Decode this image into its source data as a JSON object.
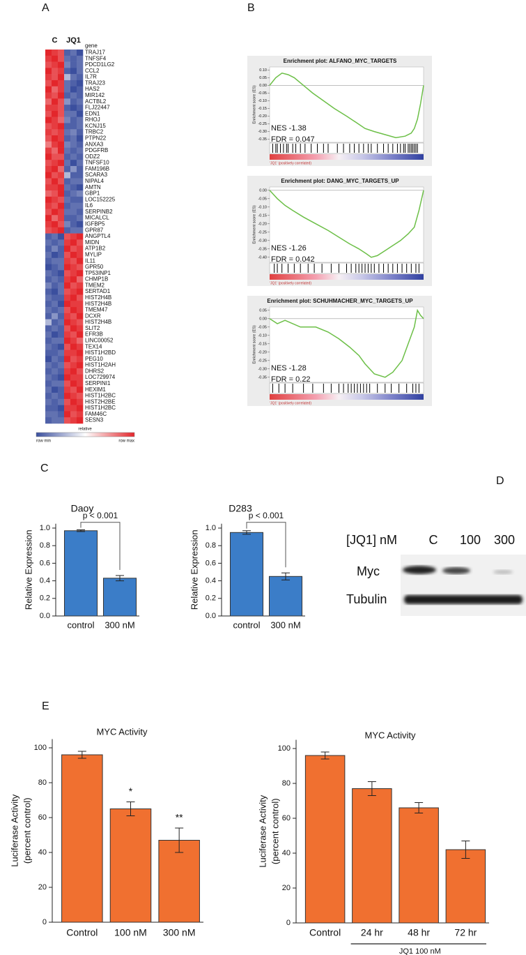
{
  "panel_labels": [
    "A",
    "B",
    "C",
    "D",
    "E"
  ],
  "chart_data": [
    {
      "type": "heatmap",
      "columns": [
        "C",
        "JQ1"
      ],
      "gene_header": "gene",
      "categories": [
        "TRAJ17",
        "TNFSF4",
        "PDCD1LG2",
        "CCL2",
        "IL7R",
        "TRAJ23",
        "HAS2",
        "MIR142",
        "ACTBL2",
        "FLJ22447",
        "EDN1",
        "RHOJ",
        "KCNJ15",
        "TRBC2",
        "PTPN22",
        "ANXA3",
        "PDGFRB",
        "ODZ2",
        "TNFSF10",
        "FAM196B",
        "SCARA3",
        "NIPAL4",
        "AMTN",
        "GBP1",
        "LOC152225",
        "IL6",
        "SERPINB2",
        "MICALCL",
        "IGFBP5",
        "GPR87",
        "ANGPTL4",
        "MIDN",
        "ATP1B2",
        "MYLIP",
        "IL11",
        "GPR50",
        "TP53INP1",
        "CHMP1B",
        "TMEM2",
        "SERTAD1",
        "HIST2H4B",
        "HIST2H4B",
        "TMEM47",
        "DCXR",
        "HIST2H4B",
        "SLIT2",
        "EFR3B",
        "LINC00052",
        "TEX14",
        "HIST1H2BD",
        "PEG10",
        "HIST1H2AH",
        "DHRS2",
        "LOC729974",
        "SERPINI1",
        "HEXIM1",
        "HIST1H2BC",
        "HIST2H2BE",
        "HIST1H2BC",
        "FAM46C",
        "SESN3"
      ],
      "values": [
        [
          1,
          0.95,
          0.9,
          0.05,
          0.1,
          0
        ],
        [
          0.95,
          1,
          0.9,
          0.1,
          0.05,
          0.1
        ],
        [
          0.9,
          0.95,
          1,
          0.15,
          0.05,
          0.1
        ],
        [
          1,
          0.9,
          0.95,
          0.05,
          0,
          0.1
        ],
        [
          0.95,
          0.9,
          1,
          0.3,
          0.1,
          0.05
        ],
        [
          0.9,
          1,
          0.95,
          0.1,
          0.05,
          0
        ],
        [
          1,
          0.85,
          0.95,
          0.1,
          0,
          0.05
        ],
        [
          0.95,
          0.9,
          1,
          0.05,
          0.1,
          0.05
        ],
        [
          0.85,
          1,
          0.9,
          0.2,
          0.05,
          0.1
        ],
        [
          0.95,
          0.95,
          0.9,
          0.05,
          0,
          0.05
        ],
        [
          0.9,
          1,
          0.9,
          0.1,
          0.1,
          0
        ],
        [
          1,
          0.95,
          0.85,
          0.15,
          0.05,
          0.1
        ],
        [
          0.9,
          0.95,
          1,
          0.05,
          0.05,
          0.1
        ],
        [
          0.95,
          0.9,
          0.95,
          0.1,
          0.15,
          0.05
        ],
        [
          0.9,
          1,
          0.95,
          0.05,
          0.1,
          0
        ],
        [
          0.8,
          0.95,
          1,
          0.15,
          0.1,
          0.05
        ],
        [
          0.95,
          0.85,
          1,
          0.1,
          0.05,
          0.1
        ],
        [
          1,
          0.9,
          0.9,
          0.05,
          0.1,
          0.05
        ],
        [
          0.9,
          0.95,
          1,
          0.1,
          0,
          0.1
        ],
        [
          0.95,
          1,
          0.85,
          0.05,
          0.2,
          0.05
        ],
        [
          1,
          0.9,
          0.95,
          0.3,
          0.05,
          0.05
        ],
        [
          0.9,
          1,
          0.9,
          0.05,
          0.1,
          0.1
        ],
        [
          0.95,
          0.95,
          1,
          0.1,
          0.05,
          0
        ],
        [
          0.85,
          0.9,
          1,
          0.05,
          0.1,
          0.15
        ],
        [
          1,
          0.95,
          0.9,
          0.1,
          0.05,
          0.05
        ],
        [
          0.95,
          0.9,
          1,
          0.05,
          0.1,
          0.1
        ],
        [
          0.9,
          1,
          0.95,
          0.1,
          0.1,
          0.05
        ],
        [
          1,
          0.85,
          0.95,
          0.05,
          0.05,
          0.1
        ],
        [
          0.95,
          1,
          0.9,
          0.15,
          0.05,
          0
        ],
        [
          0.9,
          0.95,
          1,
          0.05,
          0.1,
          0.1
        ],
        [
          0.05,
          0.1,
          0,
          0.9,
          0.95,
          1
        ],
        [
          0.1,
          0.05,
          0.1,
          0.95,
          1,
          0.9
        ],
        [
          0.05,
          0.15,
          0.05,
          1,
          0.9,
          0.95
        ],
        [
          0.1,
          0,
          0.05,
          0.9,
          1,
          0.95
        ],
        [
          0.05,
          0.1,
          0.1,
          0.95,
          0.9,
          1
        ],
        [
          0,
          0.05,
          0.1,
          1,
          0.95,
          0.9
        ],
        [
          0.1,
          0.05,
          0,
          0.9,
          0.95,
          1
        ],
        [
          0.05,
          0.1,
          0.05,
          0.95,
          1,
          0.85
        ],
        [
          0.15,
          0.05,
          0.1,
          1,
          0.9,
          0.95
        ],
        [
          0.05,
          0,
          0.1,
          0.9,
          0.95,
          1
        ],
        [
          0.1,
          0.05,
          0.05,
          0.95,
          1,
          0.9
        ],
        [
          0.05,
          0.1,
          0,
          1,
          0.95,
          0.95
        ],
        [
          0.1,
          0.05,
          0.1,
          0.9,
          1,
          0.95
        ],
        [
          0.05,
          0.2,
          0.05,
          0.95,
          0.9,
          1
        ],
        [
          0.3,
          0.05,
          0.1,
          1,
          0.95,
          0.9
        ],
        [
          0.05,
          0.1,
          0.05,
          0.9,
          1,
          0.95
        ],
        [
          0.1,
          0,
          0.05,
          0.95,
          0.9,
          1
        ],
        [
          0.05,
          0.1,
          0.1,
          1,
          0.95,
          0.85
        ],
        [
          0.1,
          0.05,
          0,
          0.9,
          1,
          0.95
        ],
        [
          0.05,
          0.05,
          0.1,
          0.95,
          0.95,
          1
        ],
        [
          0,
          0.1,
          0.05,
          1,
          0.9,
          0.95
        ],
        [
          0.1,
          0.05,
          0.1,
          0.9,
          0.95,
          1
        ],
        [
          0.05,
          0.1,
          0.05,
          0.95,
          1,
          0.9
        ],
        [
          0.1,
          0.05,
          0,
          1,
          0.95,
          0.95
        ],
        [
          0.05,
          0.1,
          0.1,
          0.9,
          1,
          0.95
        ],
        [
          0.1,
          0,
          0.05,
          0.95,
          0.9,
          1
        ],
        [
          0.05,
          0.1,
          0.05,
          1,
          0.95,
          0.9
        ],
        [
          0.1,
          0.05,
          0.1,
          0.9,
          1,
          0.95
        ],
        [
          0.05,
          0.05,
          0,
          0.95,
          0.95,
          1
        ],
        [
          0.1,
          0.1,
          0.05,
          1,
          0.9,
          0.95
        ],
        [
          0.05,
          0.1,
          0.1,
          0.9,
          0.95,
          1
        ]
      ],
      "colors": [
        "#3b4f9e",
        "#ffffff",
        "#e3262b"
      ],
      "legend": {
        "title": "relative",
        "min_label": "row min",
        "max_label": "row max"
      }
    },
    {
      "type": "gsea",
      "title": "Enrichment plot: ALFANO_MYC_TARGETS",
      "ylabel": "Enrichment score (ES)",
      "color": "#6cbf47",
      "x": [
        0,
        4,
        8,
        12,
        16,
        22,
        28,
        35,
        42,
        50,
        56,
        62,
        68,
        75,
        82,
        88,
        92,
        94,
        96,
        98,
        100
      ],
      "values": [
        0,
        0.05,
        0.08,
        0.07,
        0.05,
        0,
        -0.05,
        -0.1,
        -0.15,
        -0.2,
        -0.24,
        -0.28,
        -0.3,
        -0.32,
        -0.34,
        -0.33,
        -0.31,
        -0.28,
        -0.22,
        -0.12,
        0
      ],
      "xlim": [
        0,
        100
      ],
      "ylim": [
        -0.37,
        0.12
      ],
      "yticks": [
        {
          "value": 0.1,
          "label": "0.10"
        },
        0.05,
        {
          "value": 0,
          "label": "0.00"
        },
        -0.05,
        {
          "value": -0.1,
          "label": "-0.10"
        },
        -0.15,
        {
          "value": -0.2,
          "label": "-0.20"
        },
        -0.25,
        {
          "value": -0.3,
          "label": "-0.30"
        },
        -0.35
      ],
      "hits": [
        2,
        4,
        5,
        7,
        9,
        11,
        12,
        15,
        17,
        20,
        23,
        27,
        31,
        35,
        38,
        44,
        48,
        52,
        55,
        58,
        61,
        64,
        66,
        70,
        74,
        77,
        80,
        83,
        85,
        87,
        88,
        90,
        91,
        92,
        93,
        94,
        95,
        96
      ],
      "annotations": [
        "NES -1.38",
        "FDR = 0.047"
      ],
      "caption": "'JQ1' (positively correlated)"
    },
    {
      "type": "gsea",
      "title": "Enrichment plot: DANG_MYC_TARGETS_UP",
      "ylabel": "Enrichment score (ES)",
      "color": "#6cbf47",
      "x": [
        0,
        5,
        10,
        15,
        22,
        30,
        38,
        45,
        52,
        58,
        63,
        66,
        70,
        75,
        80,
        85,
        90,
        94,
        97,
        100
      ],
      "values": [
        0,
        -0.05,
        -0.09,
        -0.12,
        -0.16,
        -0.2,
        -0.24,
        -0.28,
        -0.32,
        -0.35,
        -0.38,
        -0.4,
        -0.39,
        -0.36,
        -0.33,
        -0.3,
        -0.26,
        -0.22,
        -0.12,
        0
      ],
      "xlim": [
        0,
        100
      ],
      "ylim": [
        -0.43,
        0.02
      ],
      "yticks": [
        {
          "value": 0,
          "label": "0.00"
        },
        -0.05,
        {
          "value": -0.1,
          "label": "-0.10"
        },
        -0.15,
        {
          "value": -0.2,
          "label": "-0.20"
        },
        -0.25,
        {
          "value": -0.3,
          "label": "-0.30"
        },
        -0.35,
        {
          "value": -0.4,
          "label": "-0.40"
        }
      ],
      "hits": [
        3,
        5,
        8,
        12,
        16,
        20,
        25,
        29,
        34,
        40,
        45,
        50,
        53,
        56,
        58,
        60,
        62,
        64,
        66,
        68,
        71,
        74,
        77,
        80,
        83,
        86,
        89,
        92,
        95,
        97
      ],
      "annotations": [
        "NES -1.26",
        "FDR = 0.042"
      ],
      "caption": "'JQ1' (positively correlated)"
    },
    {
      "type": "gsea",
      "title": "Enrichment plot: SCHUHMACHER_MYC_TARGETS_UP",
      "ylabel": "Enrichment score (ES)",
      "color": "#6cbf47",
      "x": [
        0,
        5,
        10,
        20,
        30,
        38,
        45,
        52,
        58,
        62,
        68,
        75,
        80,
        86,
        90,
        94,
        96,
        98,
        100
      ],
      "values": [
        0,
        -0.03,
        -0.01,
        -0.05,
        -0.05,
        -0.08,
        -0.12,
        -0.17,
        -0.22,
        -0.27,
        -0.33,
        -0.35,
        -0.32,
        -0.25,
        -0.15,
        -0.05,
        0.05,
        0.02,
        0
      ],
      "xlim": [
        0,
        100
      ],
      "ylim": [
        -0.38,
        0.07
      ],
      "yticks": [
        0.05,
        {
          "value": 0,
          "label": "0.00"
        },
        -0.05,
        {
          "value": -0.1,
          "label": "-0.10"
        },
        -0.15,
        {
          "value": -0.2,
          "label": "-0.20"
        },
        -0.25,
        {
          "value": -0.3,
          "label": "-0.30"
        },
        -0.35
      ],
      "hits": [
        2,
        6,
        10,
        15,
        22,
        28,
        35,
        40,
        45,
        48,
        51,
        53,
        55,
        57,
        59,
        61,
        63,
        65,
        70,
        75,
        79,
        84,
        89,
        93,
        95,
        97
      ],
      "annotations": [
        "NES -1.28",
        "FDR = 0.22"
      ],
      "caption": "'JQ1' (positively correlated)"
    },
    {
      "type": "bar",
      "title": "Daoy",
      "ylabel": [
        "Relative Expression"
      ],
      "categories": [
        "control",
        "300 nM"
      ],
      "values": [
        0.97,
        0.43
      ],
      "errors": [
        0.01,
        0.03
      ],
      "color": "#3b7dc8",
      "ylim": [
        0,
        1.05
      ],
      "yticks": [
        {
          "value": 0,
          "label": "0.0"
        },
        0.2,
        0.4,
        0.6,
        0.8,
        {
          "value": 1,
          "label": "1.0"
        }
      ],
      "annotation": "p < 0.001"
    },
    {
      "type": "bar",
      "title": "D283",
      "ylabel": [
        "Relative Expression"
      ],
      "categories": [
        "control",
        "300 nM"
      ],
      "values": [
        0.95,
        0.45
      ],
      "errors": [
        0.02,
        0.04
      ],
      "color": "#3b7dc8",
      "ylim": [
        0,
        1.05
      ],
      "yticks": [
        {
          "value": 0,
          "label": "0.0"
        },
        0.2,
        0.4,
        0.6,
        0.8,
        {
          "value": 1,
          "label": "1.0"
        }
      ],
      "annotation": "p < 0.001"
    },
    {
      "type": "bar",
      "title": "MYC Activity",
      "ylabel": [
        "Luciferase Activity",
        "(percent control)"
      ],
      "categories": [
        "Control",
        "100 nM",
        "300 nM"
      ],
      "values": [
        96,
        65,
        47
      ],
      "errors": [
        2,
        4,
        7
      ],
      "markers": [
        null,
        "*",
        "**"
      ],
      "color": "#f07030",
      "ylim": [
        0,
        105
      ],
      "yticks": [
        0,
        20,
        40,
        60,
        80,
        100
      ]
    },
    {
      "type": "bar",
      "title": "MYC Activity",
      "ylabel": [
        "Luciferase Activity",
        "(percent control)"
      ],
      "categories": [
        "Control",
        "24 hr",
        "48 hr",
        "72 hr"
      ],
      "values": [
        96,
        77,
        66,
        42
      ],
      "errors": [
        2,
        4,
        3,
        5
      ],
      "color": "#f07030",
      "ylim": [
        0,
        105
      ],
      "yticks": [
        0,
        20,
        40,
        60,
        80,
        100
      ],
      "group_label": "JQ1 100 nM"
    }
  ],
  "blot": {
    "header": "[JQ1] nM",
    "lanes": [
      "C",
      "100",
      "300"
    ],
    "rows": [
      "Myc",
      "Tubulin"
    ]
  }
}
